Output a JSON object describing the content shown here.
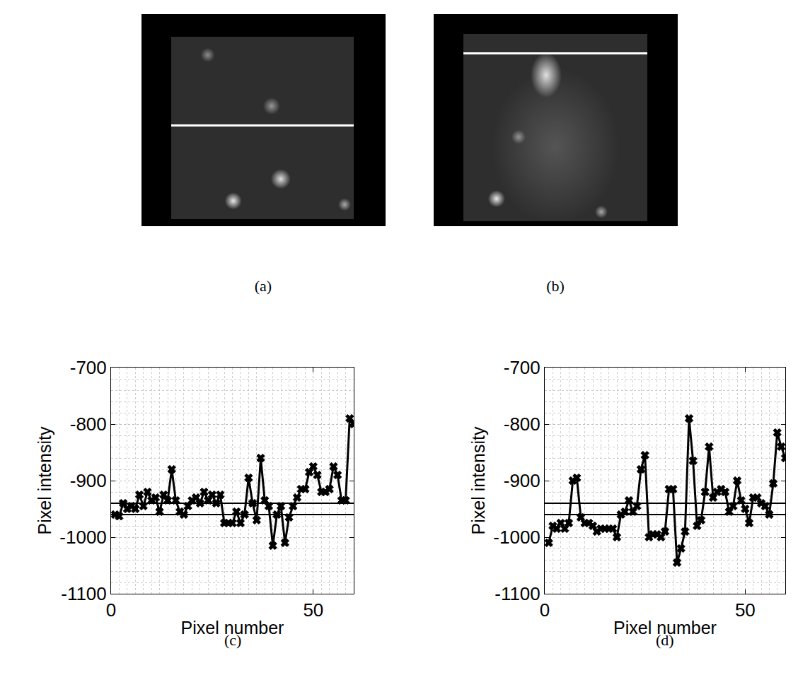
{
  "images": [
    {
      "label": "(a)"
    },
    {
      "label": "(b)"
    }
  ],
  "chart_data": [
    {
      "type": "line",
      "label": "(c)",
      "x_label": "Pixel number",
      "y_label": "Pixel intensity",
      "x": [
        1,
        2,
        3,
        4,
        5,
        6,
        7,
        8,
        9,
        10,
        11,
        12,
        13,
        14,
        15,
        16,
        17,
        18,
        19,
        20,
        21,
        22,
        23,
        24,
        25,
        26,
        27,
        28,
        29,
        30,
        31,
        32,
        33,
        34,
        35,
        36,
        37,
        38,
        39,
        40,
        41,
        42,
        43,
        44,
        45,
        46,
        47,
        48,
        49,
        50,
        51,
        52,
        53,
        54,
        55,
        56,
        57,
        58,
        59,
        60
      ],
      "values": [
        -960,
        -963,
        -940,
        -950,
        -945,
        -950,
        -925,
        -945,
        -920,
        -935,
        -930,
        -955,
        -925,
        -935,
        -880,
        -935,
        -955,
        -960,
        -945,
        -935,
        -930,
        -940,
        -920,
        -935,
        -925,
        -940,
        -925,
        -975,
        -975,
        -975,
        -955,
        -975,
        -960,
        -895,
        -940,
        -970,
        -860,
        -935,
        -945,
        -1015,
        -960,
        -945,
        -1010,
        -965,
        -945,
        -930,
        -915,
        -915,
        -885,
        -875,
        -890,
        -920,
        -920,
        -915,
        -875,
        -890,
        -935,
        -935,
        -790,
        -800
      ],
      "thresholds": [
        -960,
        -940
      ],
      "color": "#000000",
      "marker": "x",
      "line_style": "solid",
      "xlim": [
        0,
        60
      ],
      "xticks": [
        0,
        50
      ],
      "ylim": [
        -1100,
        -700
      ],
      "yticks": [
        -1100,
        -1000,
        -900,
        -800,
        -700
      ],
      "grid": true
    },
    {
      "type": "line",
      "label": "(d)",
      "x_label": "Pixel number",
      "y_label": "Pixel intensity",
      "x": [
        1,
        2,
        3,
        4,
        5,
        6,
        7,
        8,
        9,
        10,
        11,
        12,
        13,
        14,
        15,
        16,
        17,
        18,
        19,
        20,
        21,
        22,
        23,
        24,
        25,
        26,
        27,
        28,
        29,
        30,
        31,
        32,
        33,
        34,
        35,
        36,
        37,
        38,
        39,
        40,
        41,
        42,
        43,
        44,
        45,
        46,
        47,
        48,
        49,
        50,
        51,
        52,
        53,
        54,
        55,
        56,
        57,
        58,
        59,
        60
      ],
      "values": [
        -1010,
        -980,
        -985,
        -975,
        -985,
        -975,
        -900,
        -895,
        -965,
        -975,
        -975,
        -980,
        -990,
        -985,
        -985,
        -985,
        -985,
        -1000,
        -960,
        -955,
        -935,
        -955,
        -945,
        -880,
        -855,
        -1000,
        -995,
        -995,
        -1000,
        -990,
        -915,
        -915,
        -1045,
        -1020,
        -990,
        -790,
        -865,
        -980,
        -970,
        -920,
        -840,
        -930,
        -920,
        -915,
        -920,
        -955,
        -945,
        -900,
        -935,
        -950,
        -975,
        -930,
        -930,
        -940,
        -945,
        -960,
        -905,
        -815,
        -840,
        -860
      ],
      "thresholds": [
        -960,
        -940
      ],
      "color": "#000000",
      "marker": "x",
      "line_style": "solid",
      "xlim": [
        0,
        60
      ],
      "xticks": [
        0,
        50
      ],
      "ylim": [
        -1100,
        -700
      ],
      "yticks": [
        -1100,
        -1000,
        -900,
        -800,
        -700
      ],
      "grid": true
    }
  ]
}
